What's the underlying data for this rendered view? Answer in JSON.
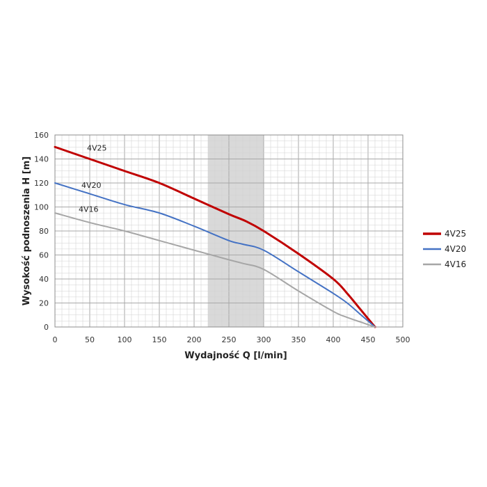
{
  "chart_data": {
    "type": "line",
    "xlabel": "Wydajność Q [l/min]",
    "ylabel": "Wysokość podnoszenia H [m]",
    "xlim": [
      0,
      500
    ],
    "ylim": [
      0,
      160
    ],
    "x_ticks": [
      "0",
      "50",
      "100",
      "150",
      "200",
      "250",
      "300",
      "350",
      "400",
      "450",
      "500"
    ],
    "y_ticks": [
      "0",
      "20",
      "40",
      "60",
      "80",
      "100",
      "120",
      "140",
      "160"
    ],
    "grid": true,
    "highlight_band": {
      "x_from": 220,
      "x_to": 300,
      "color": "#d9d9d9"
    },
    "legend_position": "right",
    "series": [
      {
        "name": "4V25",
        "color": "#c00000",
        "width": 3,
        "x": [
          0,
          50,
          100,
          150,
          200,
          250,
          275,
          300,
          350,
          400,
          420,
          440,
          460
        ],
        "y": [
          150,
          140,
          130,
          120,
          107,
          94,
          88,
          80,
          61,
          40,
          28,
          14,
          0
        ]
      },
      {
        "name": "4V20",
        "color": "#4472c4",
        "width": 2,
        "x": [
          0,
          50,
          100,
          150,
          200,
          250,
          270,
          300,
          350,
          400,
          420,
          440,
          460
        ],
        "y": [
          120,
          111,
          102,
          95,
          84,
          72,
          69,
          64,
          46,
          28,
          20,
          10,
          0
        ]
      },
      {
        "name": "4V16",
        "color": "#a6a6a6",
        "width": 2,
        "x": [
          0,
          50,
          100,
          150,
          200,
          250,
          270,
          300,
          350,
          400,
          420,
          440,
          460
        ],
        "y": [
          95,
          87,
          80,
          72,
          64,
          56,
          53,
          48,
          30,
          13,
          8,
          4,
          0
        ]
      }
    ]
  }
}
